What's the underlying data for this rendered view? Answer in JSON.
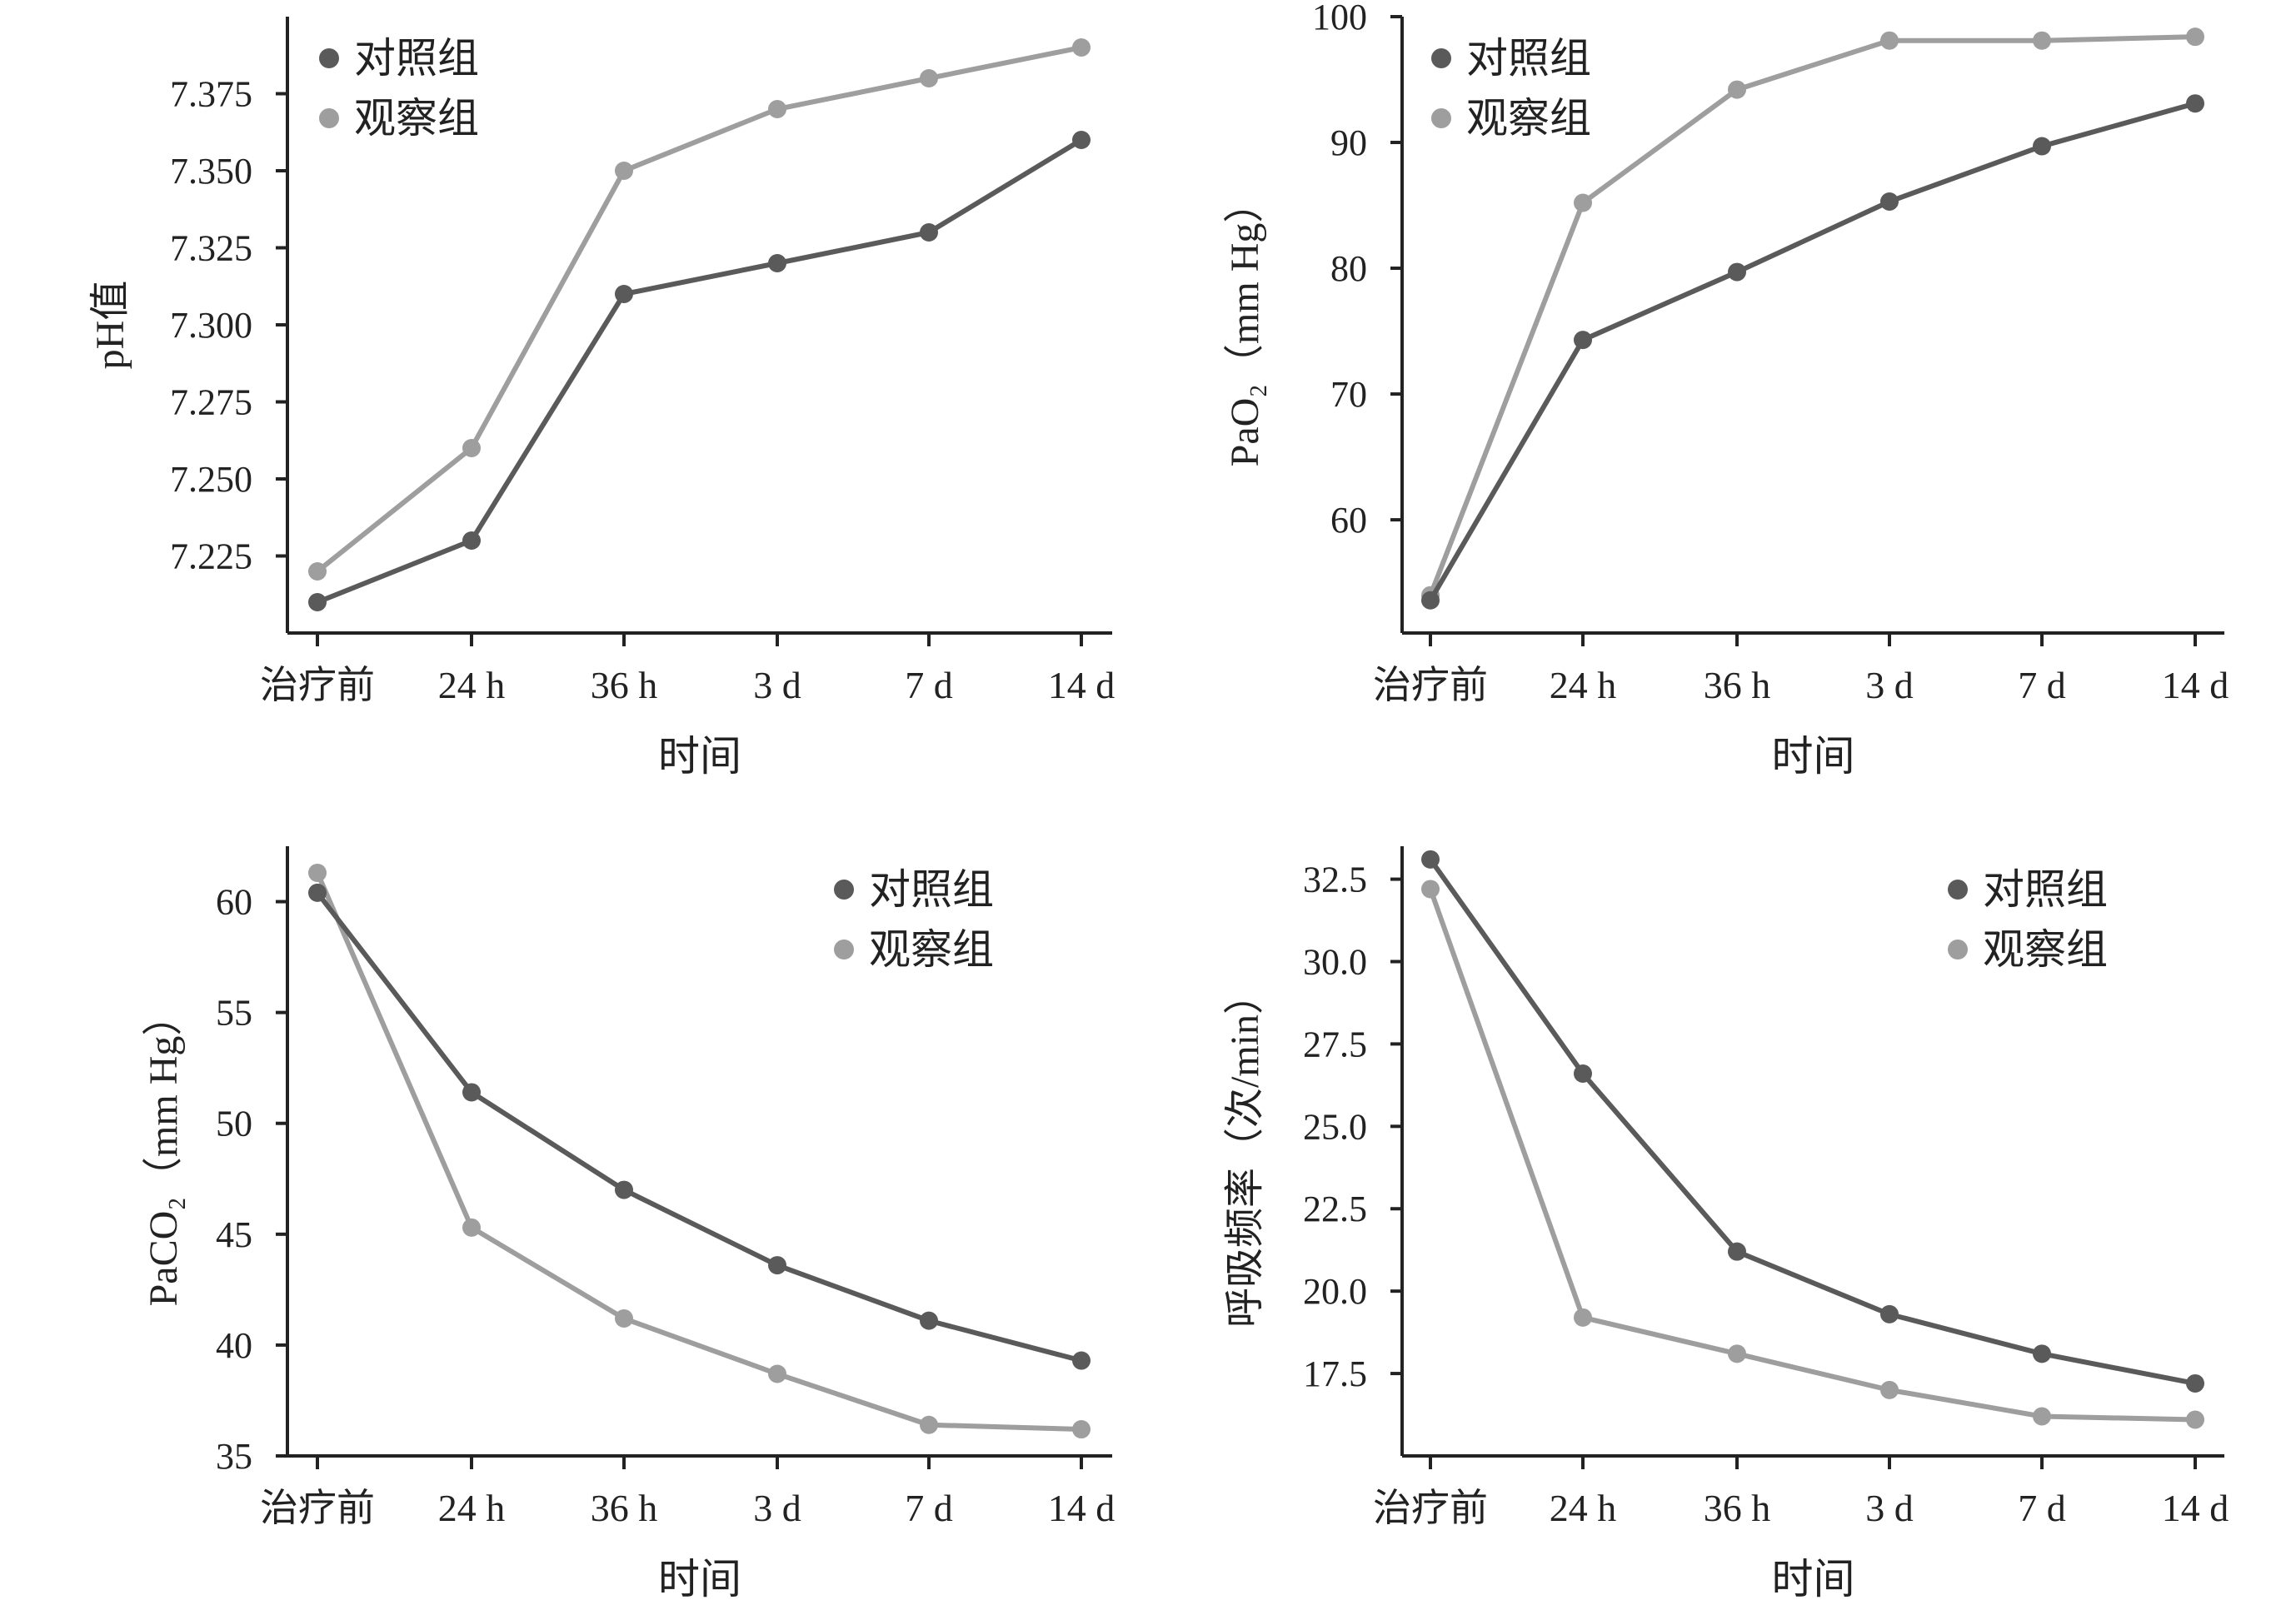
{
  "colors": {
    "control": "#5a5a5a",
    "observation": "#9e9e9e",
    "axis": "#222222",
    "text": "#222222"
  },
  "chart_data": [
    {
      "type": "line",
      "categories": [
        "治疗前",
        "24 h",
        "36 h",
        "3 d",
        "7 d",
        "14 d"
      ],
      "xlabel": "时间",
      "ylabel": "pH值",
      "ylim": [
        7.2,
        7.4
      ],
      "yticks": [
        "7.225",
        "7.250",
        "7.275",
        "7.300",
        "7.325",
        "7.350",
        "7.375"
      ],
      "legend_position": "top-left",
      "grid": false,
      "series": [
        {
          "name": "对照组",
          "values": [
            7.21,
            7.23,
            7.31,
            7.32,
            7.33,
            7.36
          ]
        },
        {
          "name": "观察组",
          "values": [
            7.22,
            7.26,
            7.35,
            7.37,
            7.38,
            7.39
          ]
        }
      ]
    },
    {
      "type": "line",
      "categories": [
        "治疗前",
        "24 h",
        "36 h",
        "3 d",
        "7 d",
        "14 d"
      ],
      "xlabel": "时间",
      "ylabel": "PaO₂（mm Hg）",
      "ylim": [
        51,
        100
      ],
      "yticks": [
        "60",
        "70",
        "80",
        "90",
        "100"
      ],
      "legend_position": "top-left",
      "grid": false,
      "series": [
        {
          "name": "对照组",
          "values": [
            53.6,
            74.3,
            79.7,
            85.3,
            89.7,
            93.1
          ]
        },
        {
          "name": "观察组",
          "values": [
            54.0,
            85.2,
            94.2,
            98.1,
            98.1,
            98.4
          ]
        }
      ]
    },
    {
      "type": "line",
      "categories": [
        "治疗前",
        "24 h",
        "36 h",
        "3 d",
        "7 d",
        "14 d"
      ],
      "xlabel": "时间",
      "ylabel": "PaCO₂（mm Hg）",
      "ylim": [
        35,
        62.5
      ],
      "yticks": [
        "35",
        "40",
        "45",
        "50",
        "55",
        "60"
      ],
      "legend_position": "top-right",
      "grid": false,
      "series": [
        {
          "name": "对照组",
          "values": [
            60.4,
            51.4,
            47.0,
            43.6,
            41.1,
            39.3
          ]
        },
        {
          "name": "观察组",
          "values": [
            61.3,
            45.3,
            41.2,
            38.7,
            36.4,
            36.2
          ]
        }
      ]
    },
    {
      "type": "line",
      "categories": [
        "治疗前",
        "24 h",
        "36 h",
        "3 d",
        "7 d",
        "14 d"
      ],
      "xlabel": "时间",
      "ylabel": "呼吸频率（次/min）",
      "ylim": [
        15.0,
        33.5
      ],
      "yticks": [
        "17.5",
        "20.0",
        "22.5",
        "25.0",
        "27.5",
        "30.0",
        "32.5"
      ],
      "legend_position": "top-right",
      "grid": false,
      "series": [
        {
          "name": "对照组",
          "values": [
            33.1,
            26.6,
            21.2,
            19.3,
            18.1,
            17.2
          ]
        },
        {
          "name": "观察组",
          "values": [
            32.2,
            19.2,
            18.1,
            17.0,
            16.2,
            16.1
          ]
        }
      ]
    }
  ]
}
